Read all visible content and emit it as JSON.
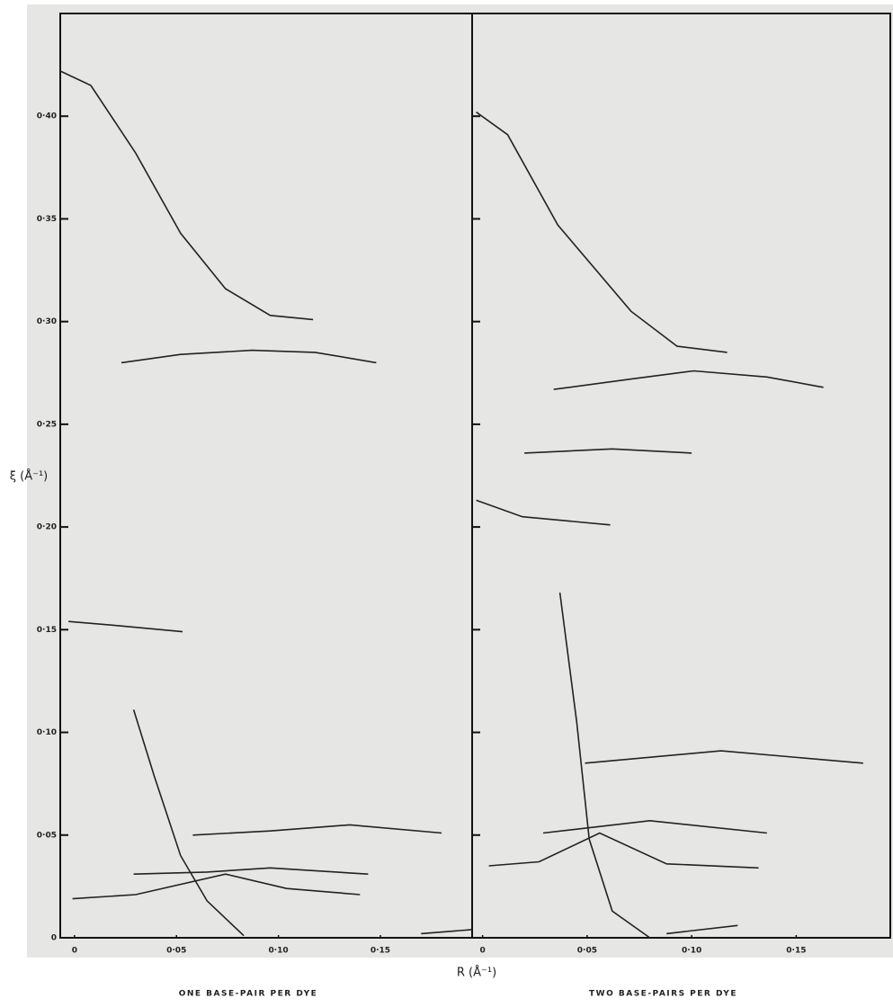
{
  "chart_data": [
    {
      "type": "line",
      "subtitle": "ONE BASE-PAIR PER DYE",
      "xlabel": "R (Å⁻¹)",
      "ylabel": "ξ (Å⁻¹)",
      "color": "#222222",
      "xlim": [
        -0.007,
        0.195
      ],
      "ylim": [
        0,
        0.45
      ],
      "xticks": [
        0,
        {
          "value": 0.05,
          "label": "0·05"
        },
        {
          "value": 0.1,
          "label": "0·10"
        },
        {
          "value": 0.15,
          "label": "0·15"
        }
      ],
      "yticks": [
        0,
        {
          "value": 0.05,
          "label": "0·05"
        },
        {
          "value": 0.1,
          "label": "0·10"
        },
        {
          "value": 0.15,
          "label": "0·15"
        },
        {
          "value": 0.2,
          "label": "0·20"
        },
        {
          "value": 0.25,
          "label": "0·25"
        },
        {
          "value": 0.3,
          "label": "0·30"
        },
        {
          "value": 0.35,
          "label": "0·35"
        },
        {
          "value": 0.4,
          "label": "0·40"
        }
      ],
      "series": [
        {
          "x": [
            -0.007,
            0.008,
            0.03,
            0.052,
            0.074,
            0.096,
            0.117
          ],
          "values": [
            0.422,
            0.415,
            0.382,
            0.343,
            0.316,
            0.303,
            0.301
          ]
        },
        {
          "x": [
            0.023,
            0.052,
            0.087,
            0.118,
            0.148
          ],
          "values": [
            0.28,
            0.284,
            0.286,
            0.285,
            0.28
          ]
        },
        {
          "x": [
            -0.003,
            0.021,
            0.053
          ],
          "values": [
            0.154,
            0.152,
            0.149
          ]
        },
        {
          "x": [
            0.058,
            0.096,
            0.135,
            0.18
          ],
          "values": [
            0.05,
            0.052,
            0.055,
            0.051
          ]
        },
        {
          "x": [
            0.029,
            0.065,
            0.096,
            0.144
          ],
          "values": [
            0.031,
            0.032,
            0.034,
            0.031
          ]
        },
        {
          "x": [
            -0.001,
            0.03,
            0.074,
            0.104,
            0.14
          ],
          "values": [
            0.019,
            0.021,
            0.031,
            0.024,
            0.021
          ]
        },
        {
          "x": [
            0.029,
            0.039,
            0.052,
            0.065,
            0.083
          ],
          "values": [
            0.111,
            0.079,
            0.04,
            0.018,
            0.001
          ]
        },
        {
          "x": [
            0.17,
            0.195
          ],
          "values": [
            0.002,
            0.004
          ]
        }
      ]
    },
    {
      "type": "line",
      "subtitle": "TWO BASE-PAIRS PER DYE",
      "color": "#222222",
      "xlim": [
        -0.005,
        0.195
      ],
      "ylim": [
        0,
        0.45
      ],
      "xticks": [
        0,
        {
          "value": 0.05,
          "label": "0·05"
        },
        {
          "value": 0.1,
          "label": "0·10"
        },
        {
          "value": 0.15,
          "label": "0·15"
        }
      ],
      "yticks": [
        0,
        0.05,
        0.1,
        0.15,
        0.2,
        0.25,
        0.3,
        0.35,
        0.4
      ],
      "series": [
        {
          "x": [
            -0.003,
            0.012,
            0.036,
            0.071,
            0.093,
            0.117
          ],
          "values": [
            0.402,
            0.391,
            0.347,
            0.305,
            0.288,
            0.285
          ]
        },
        {
          "x": [
            0.034,
            0.071,
            0.101,
            0.136,
            0.163
          ],
          "values": [
            0.267,
            0.272,
            0.276,
            0.273,
            0.268
          ]
        },
        {
          "x": [
            0.02,
            0.062,
            0.1
          ],
          "values": [
            0.236,
            0.238,
            0.236
          ]
        },
        {
          "x": [
            -0.003,
            0.019,
            0.061
          ],
          "values": [
            0.213,
            0.205,
            0.201
          ]
        },
        {
          "x": [
            0.049,
            0.114,
            0.182
          ],
          "values": [
            0.085,
            0.091,
            0.085
          ]
        },
        {
          "x": [
            0.029,
            0.08,
            0.136
          ],
          "values": [
            0.051,
            0.057,
            0.051
          ]
        },
        {
          "x": [
            0.003,
            0.027,
            0.056,
            0.088,
            0.132
          ],
          "values": [
            0.035,
            0.037,
            0.051,
            0.036,
            0.034
          ]
        },
        {
          "x": [
            0.037,
            0.045,
            0.051,
            0.062,
            0.08
          ],
          "values": [
            0.168,
            0.105,
            0.048,
            0.013,
            0
          ]
        },
        {
          "x": [
            0.088,
            0.122
          ],
          "values": [
            0.002,
            0.006
          ]
        }
      ]
    }
  ]
}
